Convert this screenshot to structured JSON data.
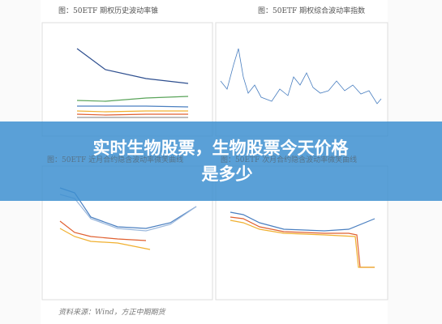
{
  "panels": [
    {
      "title": "图：50ETF 期权历史波动率锥"
    },
    {
      "title": "图：50ETF 期权综合波动率指数"
    },
    {
      "title": "图：50ETF 近月合约隐含波动率微笑曲线"
    },
    {
      "title": "图：50ETF 次月合约隐含波动率微笑曲线"
    }
  ],
  "source": "资料来源：Wind，方正中期期货",
  "banner": {
    "line1": "实时生物股票，生物股票今天价格",
    "line2": "是多少"
  }
}
